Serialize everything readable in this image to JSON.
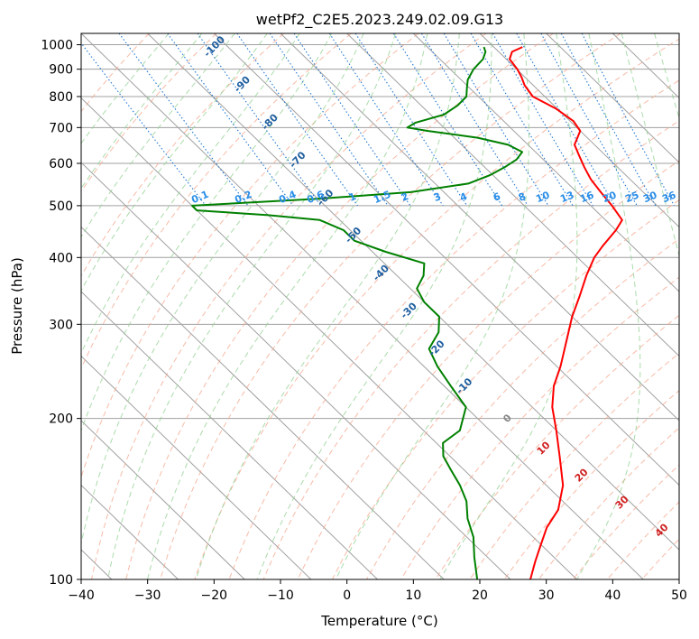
{
  "chart_data": {
    "type": "line",
    "subtype": "skew-t log-p diagram",
    "title": "wetPf2_C2E5.2023.249.02.09.G13",
    "xlabel": "Temperature (°C)",
    "ylabel": "Pressure (hPa)",
    "xlim": [
      -40,
      50
    ],
    "ylim": [
      1050,
      100
    ],
    "y_scale": "log",
    "grid": true,
    "x_ticks": [
      -40,
      -30,
      -20,
      -10,
      0,
      10,
      20,
      30,
      40,
      50
    ],
    "x_tick_labels": [
      "−40",
      "−30",
      "−20",
      "−10",
      "0",
      "10",
      "20",
      "30",
      "40",
      "50"
    ],
    "y_ticks": [
      1000,
      900,
      800,
      700,
      600,
      500,
      400,
      300,
      200,
      100
    ],
    "y_tick_labels": [
      "1000",
      "900",
      "800",
      "700",
      "600",
      "500",
      "400",
      "300",
      "200",
      "100"
    ],
    "series": [
      {
        "role": "temperature",
        "color": "#ff0000",
        "points": [
          [
            990,
            24.3
          ],
          [
            970,
            22.0
          ],
          [
            940,
            20.5
          ],
          [
            900,
            20.1
          ],
          [
            870,
            19.5
          ],
          [
            840,
            18.7
          ],
          [
            800,
            18.2
          ],
          [
            760,
            19.8
          ],
          [
            720,
            20.5
          ],
          [
            690,
            20.0
          ],
          [
            650,
            17.0
          ],
          [
            620,
            16.0
          ],
          [
            590,
            15.0
          ],
          [
            560,
            14.1
          ],
          [
            530,
            13.6
          ],
          [
            500,
            13.2
          ],
          [
            470,
            12.5
          ],
          [
            450,
            10.0
          ],
          [
            420,
            5.5
          ],
          [
            400,
            2.5
          ],
          [
            370,
            -1.5
          ],
          [
            340,
            -5.5
          ],
          [
            310,
            -10.0
          ],
          [
            280,
            -14.5
          ],
          [
            250,
            -19.5
          ],
          [
            230,
            -23.5
          ],
          [
            210,
            -27.0
          ],
          [
            190,
            -30.0
          ],
          [
            170,
            -33.5
          ],
          [
            150,
            -37.5
          ],
          [
            135,
            -42.0
          ],
          [
            125,
            -46.5
          ],
          [
            115,
            -50.5
          ],
          [
            108,
            -53.5
          ],
          [
            100,
            -57.0
          ]
        ]
      },
      {
        "role": "dewpoint",
        "color": "#008000",
        "points": [
          [
            990,
            18.5
          ],
          [
            970,
            18.0
          ],
          [
            940,
            16.5
          ],
          [
            900,
            13.5
          ],
          [
            860,
            11.0
          ],
          [
            830,
            9.6
          ],
          [
            800,
            8.2
          ],
          [
            770,
            5.5
          ],
          [
            740,
            2.0
          ],
          [
            715,
            -3.5
          ],
          [
            700,
            -5.5
          ],
          [
            690,
            -3.0
          ],
          [
            670,
            3.5
          ],
          [
            650,
            7.0
          ],
          [
            630,
            8.0
          ],
          [
            610,
            6.0
          ],
          [
            590,
            3.0
          ],
          [
            570,
            -0.5
          ],
          [
            550,
            -5.0
          ],
          [
            530,
            -15.0
          ],
          [
            515,
            -30.0
          ],
          [
            500,
            -50.0
          ],
          [
            490,
            -50.0
          ],
          [
            480,
            -40.0
          ],
          [
            470,
            -33.0
          ],
          [
            450,
            -31.0
          ],
          [
            430,
            -31.0
          ],
          [
            410,
            -28.0
          ],
          [
            390,
            -24.0
          ],
          [
            370,
            -26.0
          ],
          [
            350,
            -29.0
          ],
          [
            330,
            -30.0
          ],
          [
            310,
            -30.0
          ],
          [
            290,
            -32.5
          ],
          [
            270,
            -36.5
          ],
          [
            250,
            -38.0
          ],
          [
            230,
            -39.0
          ],
          [
            210,
            -40.0
          ],
          [
            190,
            -44.5
          ],
          [
            180,
            -49.0
          ],
          [
            170,
            -51.0
          ],
          [
            160,
            -52.0
          ],
          [
            150,
            -53.0
          ],
          [
            140,
            -54.5
          ],
          [
            130,
            -57.0
          ],
          [
            120,
            -59.0
          ],
          [
            110,
            -62.0
          ],
          [
            100,
            -65.0
          ]
        ]
      }
    ],
    "dry_adiabat_labels": [
      "-100",
      "-90",
      "-80",
      "-70",
      "-60",
      "-50",
      "-40",
      "-30",
      "-20",
      "-10"
    ],
    "mixing_ratio_labels": [
      "0.1",
      "0.2",
      "0.4",
      "0.6",
      "1",
      "1.5",
      "2",
      "3",
      "4",
      "6",
      "8",
      "10",
      "13",
      "16",
      "20",
      "25",
      "30",
      "36"
    ],
    "moist_adiabat_labels": [
      "0",
      "10",
      "20",
      "30",
      "40"
    ],
    "colors": {
      "isotherm": "#a0a0a0",
      "isobar": "#a0a0a0",
      "dry_adiabat": "#f4a48a",
      "moist_adiabat": "#8fcf8f",
      "mixing_ratio": "#1f77d4",
      "dry_label": "#1f5f9f",
      "mixing_label": "#2a8ee8",
      "moist_label": "#d02020",
      "zero_label": "#888888"
    }
  }
}
